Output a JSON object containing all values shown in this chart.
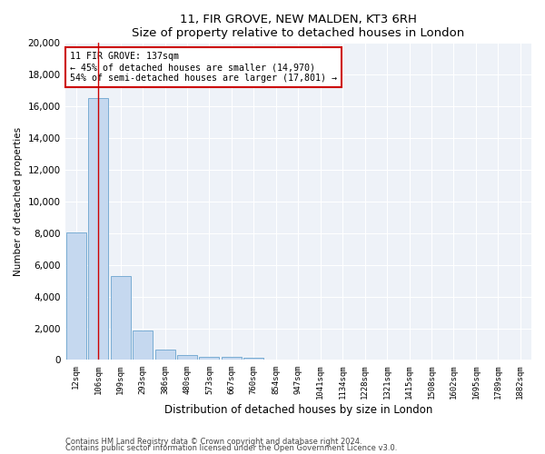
{
  "title1": "11, FIR GROVE, NEW MALDEN, KT3 6RH",
  "title2": "Size of property relative to detached houses in London",
  "xlabel": "Distribution of detached houses by size in London",
  "ylabel": "Number of detached properties",
  "categories": [
    "12sqm",
    "106sqm",
    "199sqm",
    "293sqm",
    "386sqm",
    "480sqm",
    "573sqm",
    "667sqm",
    "760sqm",
    "854sqm",
    "947sqm",
    "1041sqm",
    "1134sqm",
    "1228sqm",
    "1321sqm",
    "1415sqm",
    "1508sqm",
    "1602sqm",
    "1695sqm",
    "1789sqm",
    "1882sqm"
  ],
  "values": [
    8050,
    16500,
    5300,
    1850,
    680,
    320,
    200,
    180,
    140,
    0,
    0,
    0,
    0,
    0,
    0,
    0,
    0,
    0,
    0,
    0,
    0
  ],
  "bar_color": "#c5d8ef",
  "bar_edge_color": "#7aadd4",
  "highlight_bar_index": 1,
  "highlight_color": "#cc0000",
  "annotation_text": "11 FIR GROVE: 137sqm\n← 45% of detached houses are smaller (14,970)\n54% of semi-detached houses are larger (17,801) →",
  "annotation_box_color": "#ffffff",
  "annotation_box_edge": "#cc0000",
  "ylim": [
    0,
    20000
  ],
  "yticks": [
    0,
    2000,
    4000,
    6000,
    8000,
    10000,
    12000,
    14000,
    16000,
    18000,
    20000
  ],
  "footnote1": "Contains HM Land Registry data © Crown copyright and database right 2024.",
  "footnote2": "Contains public sector information licensed under the Open Government Licence v3.0.",
  "bg_color": "#eef2f8",
  "fig_bg_color": "#ffffff"
}
